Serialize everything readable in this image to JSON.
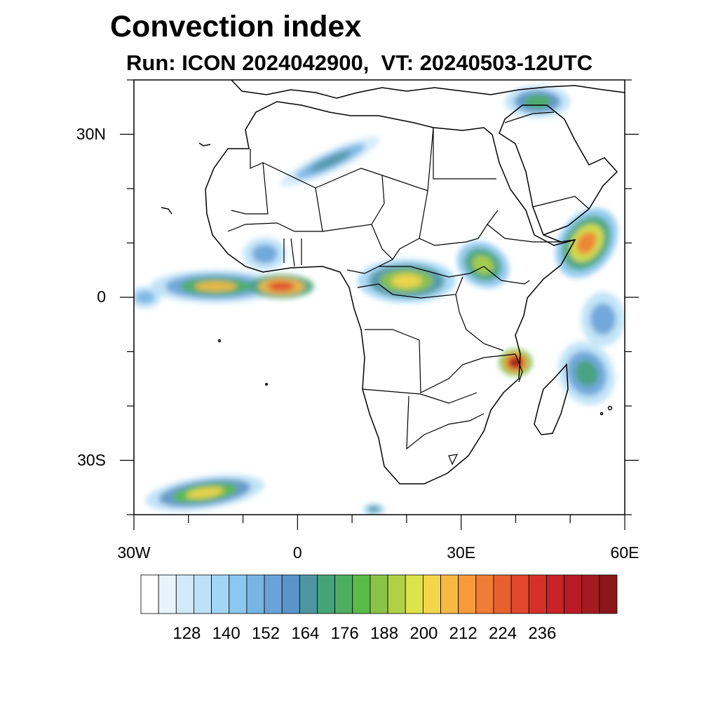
{
  "title": "Convection index",
  "subtitle": "Run: ICON 2024042900,  VT: 20240503-12UTC",
  "map": {
    "projection": "cylindrical equidistant",
    "lon_range": [
      -30,
      60
    ],
    "lat_range": [
      -40,
      40
    ],
    "lat_labels": [
      "30N",
      "0",
      "30S"
    ],
    "lon_labels": [
      "30W",
      "0",
      "30E",
      "60E"
    ],
    "lat_label_values": [
      30,
      0,
      -30
    ],
    "lon_label_values": [
      -30,
      0,
      30,
      60
    ]
  },
  "colorbar": {
    "labels": [
      "128",
      "140",
      "152",
      "164",
      "176",
      "188",
      "200",
      "212",
      "224",
      "236"
    ],
    "colors": [
      "#ffffff",
      "#e8f4fb",
      "#d2eaf8",
      "#bde1f7",
      "#a3d6f5",
      "#8cc7ef",
      "#77b5e4",
      "#6aa3d8",
      "#5b94c8",
      "#4e95a2",
      "#45a378",
      "#4cae5e",
      "#5bbb48",
      "#8bc34a",
      "#b0d048",
      "#dfe34a",
      "#f4d64c",
      "#f6b944",
      "#f69a3c",
      "#f07c35",
      "#e9602f",
      "#e0472c",
      "#d63128",
      "#c82327",
      "#b81b25",
      "#a31b20",
      "#8a161a"
    ]
  },
  "convection_cells": [
    {
      "lon": -15,
      "lat": 2,
      "rx": 12,
      "ry": 3,
      "rot": 0,
      "levels": [
        3,
        7,
        11,
        17
      ]
    },
    {
      "lon": -3,
      "lat": 2,
      "rx": 6,
      "ry": 2.2,
      "rot": 0,
      "levels": [
        10,
        17,
        21
      ]
    },
    {
      "lon": 20,
      "lat": 3,
      "rx": 9,
      "ry": 4,
      "rot": 0,
      "levels": [
        4,
        9,
        13,
        16
      ]
    },
    {
      "lon": 34,
      "lat": 6,
      "rx": 5,
      "ry": 4,
      "rot": 30,
      "levels": [
        5,
        10,
        14
      ]
    },
    {
      "lon": 40,
      "lat": -12,
      "rx": 3,
      "ry": 2.5,
      "rot": 0,
      "levels": [
        12,
        17,
        22,
        26
      ]
    },
    {
      "lon": 53,
      "lat": 10,
      "rx": 5,
      "ry": 7,
      "rot": 35,
      "levels": [
        5,
        10,
        15,
        19
      ]
    },
    {
      "lon": 6,
      "lat": 25,
      "rx": 10,
      "ry": 2,
      "rot": -25,
      "levels": [
        2,
        6,
        9
      ]
    },
    {
      "lon": -6,
      "lat": 8,
      "rx": 4,
      "ry": 3,
      "rot": 0,
      "levels": [
        3,
        7
      ]
    },
    {
      "lon": -17,
      "lat": -36,
      "rx": 11,
      "ry": 3,
      "rot": -8,
      "levels": [
        3,
        8,
        12,
        16
      ]
    },
    {
      "lon": 53,
      "lat": -14,
      "rx": 5,
      "ry": 6,
      "rot": -25,
      "levels": [
        3,
        7,
        10
      ]
    },
    {
      "lon": 56,
      "lat": -4,
      "rx": 4,
      "ry": 5,
      "rot": 0,
      "levels": [
        3,
        7
      ]
    },
    {
      "lon": 44,
      "lat": 36,
      "rx": 6,
      "ry": 3,
      "rot": 0,
      "levels": [
        3,
        8,
        11
      ]
    },
    {
      "lon": 14,
      "lat": -39,
      "rx": 2,
      "ry": 1,
      "rot": 0,
      "levels": [
        4,
        9
      ]
    },
    {
      "lon": -28,
      "lat": 0,
      "rx": 3,
      "ry": 2,
      "rot": 0,
      "levels": [
        3,
        6
      ]
    }
  ]
}
